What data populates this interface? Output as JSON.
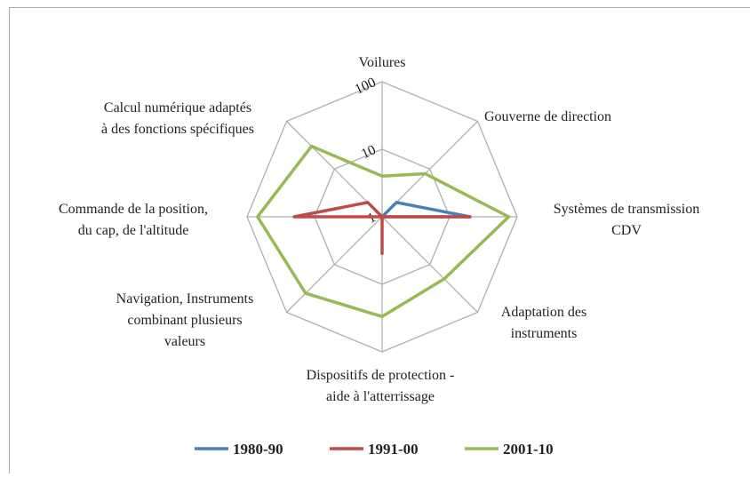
{
  "chart_data": {
    "type": "radar",
    "log": true,
    "categories": [
      "Voilures",
      "Gouverne de direction",
      "Systèmes de transmission\nCDV",
      "Adaptation des\ninstruments",
      "Dispositifs de protection -\naide à l'atterrissage",
      "Navigation, Instruments\ncombinant plusieurs\nvaleurs",
      "Commande de la position,\ndu cap, de l'altitude",
      "Calcul numérique adaptés\nà des fonctions spécifiques"
    ],
    "series": [
      {
        "name": "1980-90",
        "color": "#4a7ebb",
        "values": [
          1,
          2,
          20,
          1,
          1,
          1,
          1,
          1
        ]
      },
      {
        "name": "1991-00",
        "color": "#be4b48",
        "values": [
          1,
          1,
          20,
          1,
          3.5,
          1,
          20,
          2
        ]
      },
      {
        "name": "2001-10",
        "color": "#98b954",
        "values": [
          4,
          8,
          75,
          20,
          30,
          40,
          70,
          30
        ]
      }
    ],
    "ylim": [
      1,
      100
    ],
    "yticks": [
      1,
      10,
      100
    ],
    "grid": true,
    "legend": "bottom"
  }
}
